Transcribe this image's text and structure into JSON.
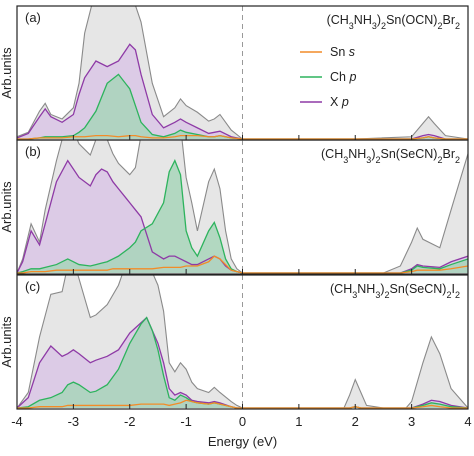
{
  "chart_data": {
    "type": "area",
    "xlabel": "Energy (eV)",
    "ylabel": "Arb.units",
    "xlim": [
      -4,
      4
    ],
    "xticks": [
      "-4",
      "-3",
      "-2",
      "-1",
      "0",
      "1",
      "2",
      "3",
      "4"
    ],
    "fermi_line_x": 0,
    "colors": {
      "total": "#8a8a8a",
      "total_fill": "#e6e6e6",
      "sn": "#f28c28",
      "ch": "#2db35d",
      "ch_fill": "#a8d5ba",
      "x": "#8e3aa6",
      "x_fill": "#dccbe6"
    },
    "legend": [
      {
        "key": "sn",
        "label": "Sn s"
      },
      {
        "key": "ch",
        "label": "Ch p"
      },
      {
        "key": "x",
        "label": "X p"
      }
    ],
    "legend_placement": "top-right of panel (a)",
    "panels": [
      {
        "letter": "(a)",
        "formula": "(CH3NH3)2Sn(OCN)2Br2",
        "ylim": [
          0,
          1
        ],
        "x": [
          -4.0,
          -3.8,
          -3.6,
          -3.5,
          -3.4,
          -3.2,
          -3.0,
          -2.9,
          -2.8,
          -2.6,
          -2.4,
          -2.2,
          -2.0,
          -1.9,
          -1.8,
          -1.6,
          -1.4,
          -1.2,
          -1.1,
          -1.0,
          -0.8,
          -0.6,
          -0.5,
          -0.4,
          -0.2,
          0.0,
          0.5,
          1.0,
          2.0,
          3.0,
          3.2,
          3.3,
          3.4,
          3.6,
          4.0
        ],
        "total": [
          0.02,
          0.06,
          0.25,
          0.32,
          0.22,
          0.18,
          0.28,
          0.5,
          0.95,
          1.35,
          1.45,
          1.4,
          1.3,
          1.2,
          1.05,
          0.5,
          0.2,
          0.28,
          0.36,
          0.3,
          0.24,
          0.16,
          0.18,
          0.22,
          0.08,
          0.0,
          0.0,
          0.0,
          0.0,
          0.02,
          0.14,
          0.2,
          0.14,
          0.03,
          0.0
        ],
        "sn": [
          0.0,
          0.0,
          0.01,
          0.01,
          0.01,
          0.01,
          0.02,
          0.02,
          0.02,
          0.03,
          0.03,
          0.02,
          0.03,
          0.03,
          0.02,
          0.01,
          0.01,
          0.02,
          0.03,
          0.03,
          0.03,
          0.02,
          0.02,
          0.03,
          0.01,
          0.0,
          0.0,
          0.0,
          0.0,
          0.0,
          0.01,
          0.02,
          0.01,
          0.0,
          0.0
        ],
        "ch": [
          0.0,
          0.0,
          0.01,
          0.02,
          0.02,
          0.02,
          0.03,
          0.06,
          0.1,
          0.25,
          0.5,
          0.58,
          0.45,
          0.3,
          0.15,
          0.04,
          0.02,
          0.05,
          0.08,
          0.06,
          0.04,
          0.02,
          0.02,
          0.03,
          0.01,
          0.0,
          0.0,
          0.0,
          0.0,
          0.0,
          0.01,
          0.02,
          0.01,
          0.0,
          0.0
        ],
        "xp": [
          0.01,
          0.05,
          0.2,
          0.27,
          0.2,
          0.15,
          0.22,
          0.4,
          0.55,
          0.7,
          0.65,
          0.7,
          0.85,
          0.8,
          0.58,
          0.22,
          0.1,
          0.15,
          0.18,
          0.15,
          0.1,
          0.05,
          0.06,
          0.07,
          0.02,
          0.0,
          0.0,
          0.0,
          0.0,
          0.0,
          0.03,
          0.04,
          0.03,
          0.0,
          0.0
        ]
      },
      {
        "letter": "(b)",
        "formula": "(CH3NH3)2Sn(SeCN)2Br2",
        "ylim": [
          0,
          1
        ],
        "x": [
          -4.0,
          -3.9,
          -3.75,
          -3.6,
          -3.5,
          -3.3,
          -3.1,
          -2.9,
          -2.7,
          -2.6,
          -2.5,
          -2.4,
          -2.3,
          -2.2,
          -2.0,
          -1.9,
          -1.8,
          -1.6,
          -1.4,
          -1.3,
          -1.2,
          -1.1,
          -1.0,
          -0.9,
          -0.8,
          -0.6,
          -0.5,
          -0.4,
          -0.3,
          -0.2,
          -0.1,
          0.0,
          1.0,
          2.5,
          2.8,
          3.0,
          3.1,
          3.2,
          3.5,
          3.7,
          4.0
        ],
        "total": [
          0.0,
          0.1,
          0.35,
          0.22,
          0.45,
          0.8,
          1.1,
          0.92,
          0.84,
          0.95,
          0.98,
          0.95,
          0.85,
          0.78,
          0.7,
          0.75,
          0.98,
          1.1,
          1.05,
          1.1,
          1.15,
          1.05,
          0.68,
          0.5,
          0.3,
          0.65,
          0.74,
          0.6,
          0.3,
          0.1,
          0.03,
          0.0,
          0.0,
          0.0,
          0.05,
          0.22,
          0.32,
          0.24,
          0.18,
          0.45,
          0.85
        ],
        "sn": [
          0.0,
          0.0,
          0.01,
          0.01,
          0.01,
          0.02,
          0.02,
          0.02,
          0.02,
          0.02,
          0.02,
          0.02,
          0.03,
          0.03,
          0.03,
          0.03,
          0.03,
          0.03,
          0.04,
          0.04,
          0.04,
          0.04,
          0.05,
          0.05,
          0.05,
          0.08,
          0.12,
          0.1,
          0.06,
          0.02,
          0.01,
          0.0,
          0.0,
          0.0,
          0.0,
          0.01,
          0.02,
          0.02,
          0.02,
          0.03,
          0.05
        ],
        "ch": [
          0.0,
          0.01,
          0.03,
          0.03,
          0.04,
          0.06,
          0.1,
          0.06,
          0.05,
          0.06,
          0.07,
          0.08,
          0.1,
          0.12,
          0.18,
          0.22,
          0.3,
          0.35,
          0.5,
          0.72,
          0.8,
          0.7,
          0.3,
          0.18,
          0.12,
          0.3,
          0.36,
          0.25,
          0.1,
          0.03,
          0.01,
          0.0,
          0.0,
          0.0,
          0.0,
          0.02,
          0.05,
          0.04,
          0.03,
          0.06,
          0.1
        ],
        "xp": [
          0.0,
          0.08,
          0.3,
          0.2,
          0.35,
          0.65,
          0.8,
          0.68,
          0.62,
          0.7,
          0.74,
          0.72,
          0.65,
          0.6,
          0.5,
          0.45,
          0.4,
          0.15,
          0.1,
          0.12,
          0.12,
          0.1,
          0.08,
          0.06,
          0.06,
          0.1,
          0.12,
          0.1,
          0.05,
          0.02,
          0.01,
          0.0,
          0.0,
          0.0,
          0.0,
          0.03,
          0.06,
          0.05,
          0.04,
          0.08,
          0.12
        ]
      },
      {
        "letter": "(c)",
        "formula": "(CH3NH3)2Sn(SeCN)2I2",
        "ylim": [
          0,
          1
        ],
        "x": [
          -4.0,
          -3.8,
          -3.6,
          -3.4,
          -3.2,
          -3.1,
          -3.0,
          -2.9,
          -2.7,
          -2.6,
          -2.4,
          -2.2,
          -2.0,
          -1.8,
          -1.7,
          -1.6,
          -1.5,
          -1.4,
          -1.3,
          -1.2,
          -1.1,
          -1.0,
          -0.9,
          -0.8,
          -0.6,
          -0.5,
          -0.4,
          -0.2,
          -0.1,
          0.0,
          1.0,
          1.8,
          1.9,
          2.0,
          2.1,
          2.2,
          2.5,
          2.9,
          3.0,
          3.2,
          3.35,
          3.5,
          3.7,
          4.0
        ],
        "total": [
          0.0,
          0.12,
          0.55,
          0.88,
          0.9,
          1.1,
          1.15,
          1.0,
          0.7,
          0.72,
          0.8,
          0.95,
          1.2,
          1.25,
          1.2,
          1.05,
          0.95,
          0.75,
          0.35,
          0.28,
          0.35,
          0.3,
          0.2,
          0.15,
          0.12,
          0.16,
          0.12,
          0.05,
          0.02,
          0.0,
          0.0,
          0.0,
          0.1,
          0.22,
          0.12,
          0.02,
          0.0,
          0.0,
          0.05,
          0.35,
          0.55,
          0.42,
          0.15,
          0.0
        ],
        "sn": [
          0.0,
          0.0,
          0.01,
          0.01,
          0.01,
          0.02,
          0.02,
          0.02,
          0.02,
          0.02,
          0.02,
          0.02,
          0.02,
          0.03,
          0.03,
          0.03,
          0.03,
          0.03,
          0.02,
          0.03,
          0.04,
          0.06,
          0.05,
          0.04,
          0.03,
          0.04,
          0.03,
          0.01,
          0.0,
          0.0,
          0.0,
          0.0,
          0.0,
          0.01,
          0.0,
          0.0,
          0.0,
          0.0,
          0.0,
          0.01,
          0.02,
          0.01,
          0.0,
          0.0
        ],
        "ch": [
          0.0,
          0.01,
          0.06,
          0.08,
          0.12,
          0.18,
          0.2,
          0.18,
          0.12,
          0.13,
          0.18,
          0.3,
          0.5,
          0.65,
          0.7,
          0.6,
          0.45,
          0.25,
          0.08,
          0.06,
          0.1,
          0.08,
          0.05,
          0.04,
          0.03,
          0.04,
          0.03,
          0.01,
          0.0,
          0.0,
          0.0,
          0.0,
          0.0,
          0.01,
          0.0,
          0.0,
          0.0,
          0.0,
          0.0,
          0.02,
          0.04,
          0.03,
          0.01,
          0.0
        ],
        "xp": [
          0.0,
          0.08,
          0.35,
          0.48,
          0.4,
          0.42,
          0.45,
          0.42,
          0.35,
          0.37,
          0.4,
          0.45,
          0.58,
          0.66,
          0.7,
          0.6,
          0.5,
          0.35,
          0.15,
          0.1,
          0.12,
          0.1,
          0.06,
          0.05,
          0.04,
          0.05,
          0.04,
          0.01,
          0.0,
          0.0,
          0.0,
          0.0,
          0.0,
          0.01,
          0.0,
          0.0,
          0.0,
          0.0,
          0.0,
          0.03,
          0.06,
          0.05,
          0.02,
          0.0
        ]
      }
    ]
  }
}
